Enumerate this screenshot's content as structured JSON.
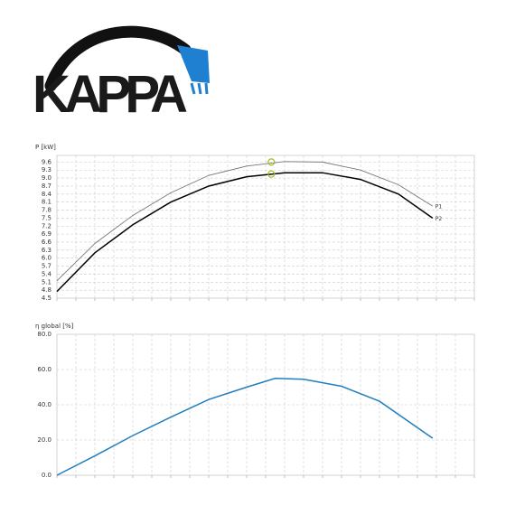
{
  "logo": {
    "text": "KAPPA"
  },
  "chart_data": [
    {
      "type": "line",
      "ylabel": "P [kW]",
      "x": [
        0,
        2,
        4,
        6,
        8,
        10,
        12,
        14,
        16,
        18,
        19.8
      ],
      "series": [
        {
          "name": "P1",
          "color": "#777777",
          "values": [
            5.15,
            6.55,
            7.6,
            8.45,
            9.1,
            9.45,
            9.62,
            9.6,
            9.3,
            8.75,
            7.95
          ]
        },
        {
          "name": "P2",
          "color": "#000000",
          "values": [
            4.75,
            6.2,
            7.25,
            8.1,
            8.7,
            9.05,
            9.2,
            9.2,
            8.95,
            8.4,
            7.5
          ]
        }
      ],
      "markers": {
        "color": "#9fbf1f",
        "x": [
          11.3,
          11.3
        ],
        "y": [
          9.6,
          9.15
        ]
      },
      "xlim": [
        0,
        22
      ],
      "xticks": [
        0,
        1,
        2,
        3,
        4,
        5,
        6,
        7,
        8,
        9,
        10,
        11,
        12,
        13,
        14,
        15,
        16,
        17,
        18,
        19,
        20,
        21,
        22
      ],
      "ylim": [
        4.5,
        9.85
      ],
      "yticks": [
        4.5,
        4.8,
        5.1,
        5.4,
        5.7,
        {
          "value": 6,
          "label": "6.0"
        },
        6.3,
        6.6,
        6.9,
        7.2,
        7.5,
        7.8,
        8.1,
        8.4,
        8.7,
        {
          "value": 9,
          "label": "9.0"
        },
        9.3,
        9.6
      ],
      "grid": true
    },
    {
      "type": "line",
      "ylabel": "η global [%]",
      "x": [
        0,
        2,
        4,
        6,
        8,
        10,
        11.5,
        13,
        15,
        17,
        19.8
      ],
      "series": [
        {
          "color": "#1f7fbf",
          "values": [
            0,
            11,
            22.5,
            33,
            43,
            50,
            55,
            54.5,
            50.5,
            42,
            21
          ]
        }
      ],
      "xlim": [
        0,
        22
      ],
      "xticks": [
        0,
        1,
        2,
        3,
        4,
        5,
        6,
        7,
        8,
        9,
        10,
        11,
        12,
        13,
        14,
        15,
        16,
        17,
        18,
        19,
        20,
        21,
        22
      ],
      "ylim": [
        0,
        80
      ],
      "yticks": [
        {
          "value": 0,
          "label": "0.0"
        },
        {
          "value": 20,
          "label": "20.0"
        },
        {
          "value": 40,
          "label": "40.0"
        },
        {
          "value": 60,
          "label": "60.0"
        },
        {
          "value": 80,
          "label": "80.0"
        }
      ],
      "grid": true
    }
  ]
}
